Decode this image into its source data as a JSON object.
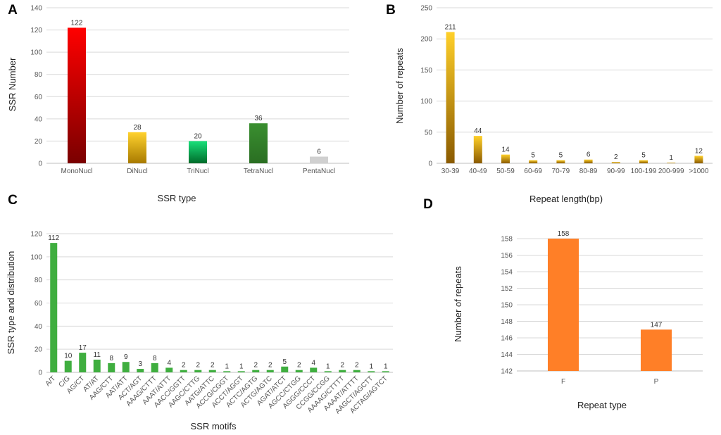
{
  "chart_data": [
    {
      "panel": "A",
      "type": "bar",
      "categories": [
        "MonoNucl",
        "DiNucl",
        "TriNucl",
        "TetraNucl",
        "PentaNucl"
      ],
      "values": [
        122,
        28,
        20,
        36,
        6
      ],
      "colors": [
        [
          "#ff0000",
          "#7a0000"
        ],
        [
          "#ffd22e",
          "#a87a00"
        ],
        [
          "#19e07a",
          "#006b2a"
        ],
        [
          "#3a8f30",
          "#2a6e22"
        ],
        [
          "#d0d0d0",
          "#d0d0d0"
        ]
      ],
      "xlabel": "SSR type",
      "ylabel": "SSR Number",
      "ylim": [
        0,
        140
      ],
      "yticks": [
        0,
        20,
        40,
        60,
        80,
        100,
        120,
        140
      ]
    },
    {
      "panel": "B",
      "type": "bar",
      "categories": [
        "30-39",
        "40-49",
        "50-59",
        "60-69",
        "70-79",
        "80-89",
        "90-99",
        "100-199",
        "200-999",
        ">1000"
      ],
      "values": [
        211,
        44,
        14,
        5,
        5,
        6,
        2,
        5,
        1,
        12
      ],
      "colors": [
        [
          "#ffd02a",
          "#8a5a00"
        ]
      ],
      "xlabel": "Repeat length(bp)",
      "ylabel": "Number of repeats",
      "ylim": [
        0,
        250
      ],
      "yticks": [
        0,
        50,
        100,
        150,
        200,
        250
      ]
    },
    {
      "panel": "C",
      "type": "bar",
      "categories": [
        "A/T",
        "C/G",
        "AG/CT",
        "AT/AT",
        "AAG/CTT",
        "AAT/ATT",
        "ACT/AGT",
        "AAAG/CTTT",
        "AAAT/ATTT",
        "AACC/GGTT",
        "AAGC/CTTG",
        "AATG/ATTC",
        "ACCG/CGGT",
        "ACCT/AGGT",
        "ACTC/AGTG",
        "ACTG/AGTC",
        "AGAT/ATCT",
        "AGCC/CTGG",
        "AGGG/CCCT",
        "CCGG/CCGG",
        "AAAAG/CTTTT",
        "AAAAT/ATTTT",
        "AAGCT/AGCTT",
        "ACTAG/AGTCT"
      ],
      "values": [
        112,
        10,
        17,
        11,
        8,
        9,
        3,
        8,
        4,
        2,
        2,
        2,
        1,
        1,
        2,
        2,
        5,
        2,
        4,
        1,
        2,
        2,
        1,
        1
      ],
      "colors": [
        [
          "#3fae3f",
          "#3fae3f"
        ]
      ],
      "xlabel": "SSR motifs",
      "ylabel": "SSR type and distribution",
      "ylim": [
        0,
        120
      ],
      "yticks": [
        0,
        20,
        40,
        60,
        80,
        100,
        120
      ]
    },
    {
      "panel": "D",
      "type": "bar",
      "categories": [
        "F",
        "P"
      ],
      "values": [
        158,
        147
      ],
      "colors": [
        [
          "#ff7f27",
          "#ff7f27"
        ]
      ],
      "xlabel": "Repeat type",
      "ylabel": "Number of repeats",
      "ylim": [
        142,
        158
      ],
      "yticks": [
        142,
        144,
        146,
        148,
        150,
        152,
        154,
        156,
        158
      ]
    }
  ]
}
